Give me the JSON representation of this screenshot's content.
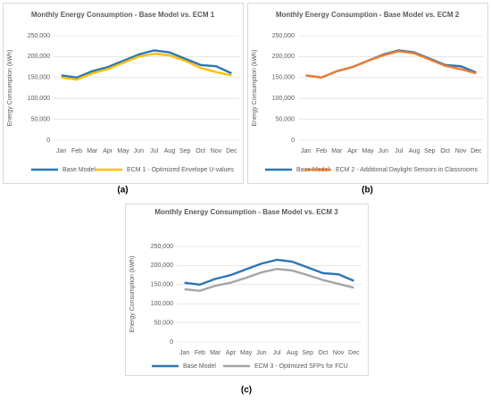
{
  "chart_data": [
    {
      "type": "line",
      "label": "(a)",
      "title": "Monthly Energy Consumption - Base Model vs. ECM 1",
      "y_label": "Energy Consumption (kWh)",
      "categories": [
        "Jan",
        "Feb",
        "Mar",
        "Apr",
        "May",
        "Jun",
        "Jul",
        "Aug",
        "Sep",
        "Oct",
        "Nov",
        "Dec"
      ],
      "series": [
        {
          "name": "Base Model",
          "color": "#2e75b6",
          "values": [
            155000,
            150000,
            165000,
            175000,
            190000,
            205000,
            215000,
            210000,
            195000,
            180000,
            177000,
            160000
          ]
        },
        {
          "name": "ECM 1 - Optimized Envelope U-values",
          "color": "#ffc000",
          "values": [
            150000,
            145000,
            160000,
            170000,
            185000,
            200000,
            207000,
            203000,
            190000,
            173000,
            163000,
            155000
          ]
        }
      ],
      "ylim": [
        0,
        250000
      ],
      "yticks": [
        0,
        {
          "value": 50000,
          "label": "50,000"
        },
        {
          "value": 100000,
          "label": "100,000"
        },
        {
          "value": 150000,
          "label": "150,000"
        },
        {
          "value": 200000,
          "label": "200,000"
        },
        {
          "value": 250000,
          "label": "250,000"
        }
      ],
      "legend": "bottom"
    },
    {
      "type": "line",
      "label": "(b)",
      "title": "Monthly Energy Consumption - Base Model vs. ECM 2",
      "y_label": "Energy Consumption (kWh)",
      "categories": [
        "Jan",
        "Feb",
        "Mar",
        "Apr",
        "May",
        "Jun",
        "Jul",
        "Aug",
        "Sep",
        "Oct",
        "Nov",
        "Dec"
      ],
      "series": [
        {
          "name": "Base Model",
          "color": "#2e75b6",
          "values": [
            155000,
            150000,
            165000,
            175000,
            190000,
            205000,
            215000,
            210000,
            195000,
            180000,
            177000,
            162000
          ]
        },
        {
          "name": "ECM 2 - Additional Daylight Sensors in Classrooms",
          "color": "#ed7d31",
          "values": [
            155000,
            150000,
            165000,
            175000,
            190000,
            203000,
            213000,
            208000,
            193000,
            178000,
            170000,
            160000
          ]
        }
      ],
      "ylim": [
        0,
        250000
      ],
      "yticks": [
        0,
        {
          "value": 50000,
          "label": "50,000"
        },
        {
          "value": 100000,
          "label": "100,000"
        },
        {
          "value": 150000,
          "label": "150,000"
        },
        {
          "value": 200000,
          "label": "200,000"
        },
        {
          "value": 250000,
          "label": "250,000"
        }
      ],
      "legend": "bottom"
    },
    {
      "type": "line",
      "label": "(c)",
      "title": "Monthly Energy Consumption - Base Model vs. ECM 3",
      "y_label": "Energy Consumption (kWh)",
      "categories": [
        "Jan",
        "Feb",
        "Mar",
        "Apr",
        "May",
        "Jun",
        "Jul",
        "Aug",
        "Sep",
        "Oct",
        "Nov",
        "Dec"
      ],
      "series": [
        {
          "name": "Base Model",
          "color": "#2e75b6",
          "values": [
            155000,
            150000,
            165000,
            175000,
            190000,
            205000,
            215000,
            210000,
            195000,
            180000,
            177000,
            160000
          ]
        },
        {
          "name": "ECM 3 - Optimized SFPs for FCU",
          "color": "#a5a5a5",
          "values": [
            138000,
            134000,
            147000,
            155000,
            168000,
            182000,
            191000,
            187000,
            175000,
            162000,
            152000,
            142000
          ]
        }
      ],
      "ylim": [
        0,
        250000
      ],
      "yticks": [
        0,
        {
          "value": 50000,
          "label": "50,000"
        },
        {
          "value": 100000,
          "label": "100,000"
        },
        {
          "value": 150000,
          "label": "150,000"
        },
        {
          "value": 200000,
          "label": "200,000"
        },
        {
          "value": 250000,
          "label": "250,000"
        }
      ],
      "legend": "bottom"
    }
  ]
}
